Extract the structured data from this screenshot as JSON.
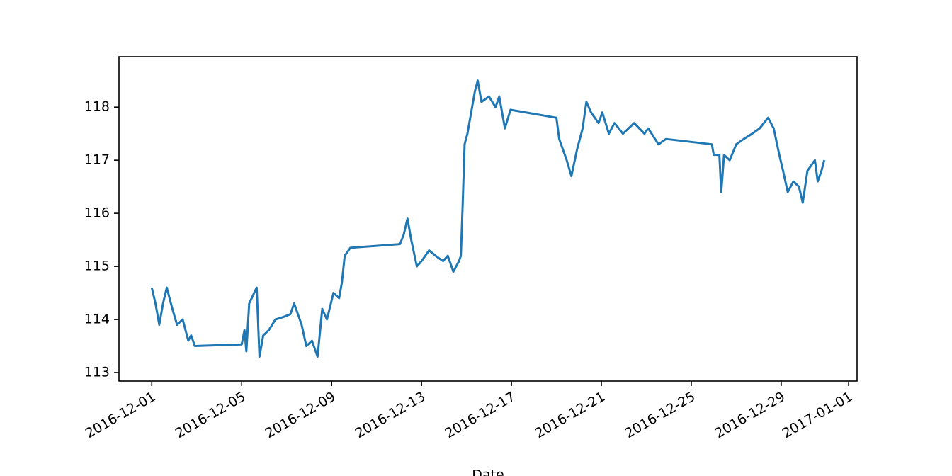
{
  "chart_data": {
    "type": "line",
    "xlabel": "Date",
    "x": [
      "2016-12-01T00:00",
      "2016-12-01T04:00",
      "2016-12-01T08:00",
      "2016-12-01T12:00",
      "2016-12-01T16:00",
      "2016-12-01T22:00",
      "2016-12-02T03:00",
      "2016-12-02T09:00",
      "2016-12-02T15:00",
      "2016-12-02T18:00",
      "2016-12-02T22:00",
      "2016-12-05T00:00",
      "2016-12-05T03:00",
      "2016-12-05T05:00",
      "2016-12-05T08:00",
      "2016-12-05T16:00",
      "2016-12-05T19:00",
      "2016-12-05T23:00",
      "2016-12-06T05:00",
      "2016-12-06T12:00",
      "2016-12-06T21:00",
      "2016-12-07T04:00",
      "2016-12-07T08:00",
      "2016-12-07T16:00",
      "2016-12-07T21:00",
      "2016-12-08T03:00",
      "2016-12-08T09:00",
      "2016-12-08T14:00",
      "2016-12-08T19:00",
      "2016-12-09T02:00",
      "2016-12-09T08:00",
      "2016-12-09T11:00",
      "2016-12-09T14:00",
      "2016-12-09T20:00",
      "2016-12-12T01:00",
      "2016-12-12T05:00",
      "2016-12-12T09:00",
      "2016-12-12T13:00",
      "2016-12-12T19:00",
      "2016-12-13T00:00",
      "2016-12-13T08:00",
      "2016-12-13T15:00",
      "2016-12-13T23:00",
      "2016-12-14T04:00",
      "2016-12-14T10:00",
      "2016-12-14T16:00",
      "2016-12-14T18:00",
      "2016-12-14T20:00",
      "2016-12-14T22:00",
      "2016-12-15T01:00",
      "2016-12-15T04:00",
      "2016-12-15T09:00",
      "2016-12-15T12:00",
      "2016-12-15T16:00",
      "2016-12-16T00:00",
      "2016-12-16T07:00",
      "2016-12-16T11:00",
      "2016-12-16T17:00",
      "2016-12-16T23:00",
      "2016-12-19T00:00",
      "2016-12-19T03:00",
      "2016-12-19T11:00",
      "2016-12-19T16:00",
      "2016-12-19T22:00",
      "2016-12-20T04:00",
      "2016-12-20T08:00",
      "2016-12-20T13:00",
      "2016-12-20T21:00",
      "2016-12-21T01:00",
      "2016-12-21T08:00",
      "2016-12-21T14:00",
      "2016-12-21T23:00",
      "2016-12-22T11:00",
      "2016-12-22T22:00",
      "2016-12-23T02:00",
      "2016-12-23T13:00",
      "2016-12-23T21:00",
      "2016-12-25T22:00",
      "2016-12-26T00:00",
      "2016-12-26T06:00",
      "2016-12-26T08:00",
      "2016-12-26T11:00",
      "2016-12-26T17:00",
      "2016-12-27T00:00",
      "2016-12-27T08:00",
      "2016-12-27T17:00",
      "2016-12-28T01:00",
      "2016-12-28T10:00",
      "2016-12-28T16:00",
      "2016-12-28T22:00",
      "2016-12-29T02:00",
      "2016-12-29T07:00",
      "2016-12-29T13:00",
      "2016-12-29T19:00",
      "2016-12-29T23:00",
      "2016-12-30T04:00",
      "2016-12-30T08:00",
      "2016-12-30T12:00",
      "2016-12-30T15:00",
      "2016-12-30T19:00",
      "2016-12-30T22:00"
    ],
    "series": [
      {
        "color": "#1f77b4",
        "values": [
          114.6,
          114.3,
          113.9,
          114.3,
          114.6,
          114.2,
          113.9,
          114.0,
          113.6,
          113.7,
          113.5,
          113.53,
          113.8,
          113.4,
          114.3,
          114.6,
          113.3,
          113.7,
          113.8,
          114.0,
          114.05,
          114.1,
          114.3,
          113.9,
          113.5,
          113.6,
          113.3,
          114.2,
          114.0,
          114.5,
          114.4,
          114.7,
          115.2,
          115.35,
          115.42,
          115.6,
          115.9,
          115.5,
          115.0,
          115.1,
          115.3,
          115.2,
          115.1,
          115.2,
          114.9,
          115.1,
          115.2,
          116.2,
          117.3,
          117.5,
          117.8,
          118.3,
          118.5,
          118.1,
          118.2,
          118.0,
          118.2,
          117.6,
          117.95,
          117.8,
          117.4,
          117.0,
          116.7,
          117.2,
          117.6,
          118.1,
          117.9,
          117.7,
          117.9,
          117.5,
          117.7,
          117.5,
          117.7,
          117.5,
          117.6,
          117.3,
          117.4,
          117.3,
          117.1,
          117.1,
          116.4,
          117.1,
          117.0,
          117.3,
          117.4,
          117.5,
          117.6,
          117.8,
          117.6,
          117.1,
          116.8,
          116.4,
          116.6,
          116.5,
          116.2,
          116.8,
          116.9,
          117.0,
          116.6,
          116.8,
          117.0
        ]
      }
    ],
    "xlim": [
      "2016-11-29T13:00",
      "2017-01-01T09:00"
    ],
    "xticks": [
      "2016-12-01",
      "2016-12-05",
      "2016-12-09",
      "2016-12-13",
      "2016-12-17",
      "2016-12-21",
      "2016-12-25",
      "2016-12-29",
      "2017-01-01"
    ],
    "ylim": [
      112.84,
      118.95
    ],
    "yticks": [
      113,
      114,
      115,
      116,
      117,
      118
    ]
  }
}
